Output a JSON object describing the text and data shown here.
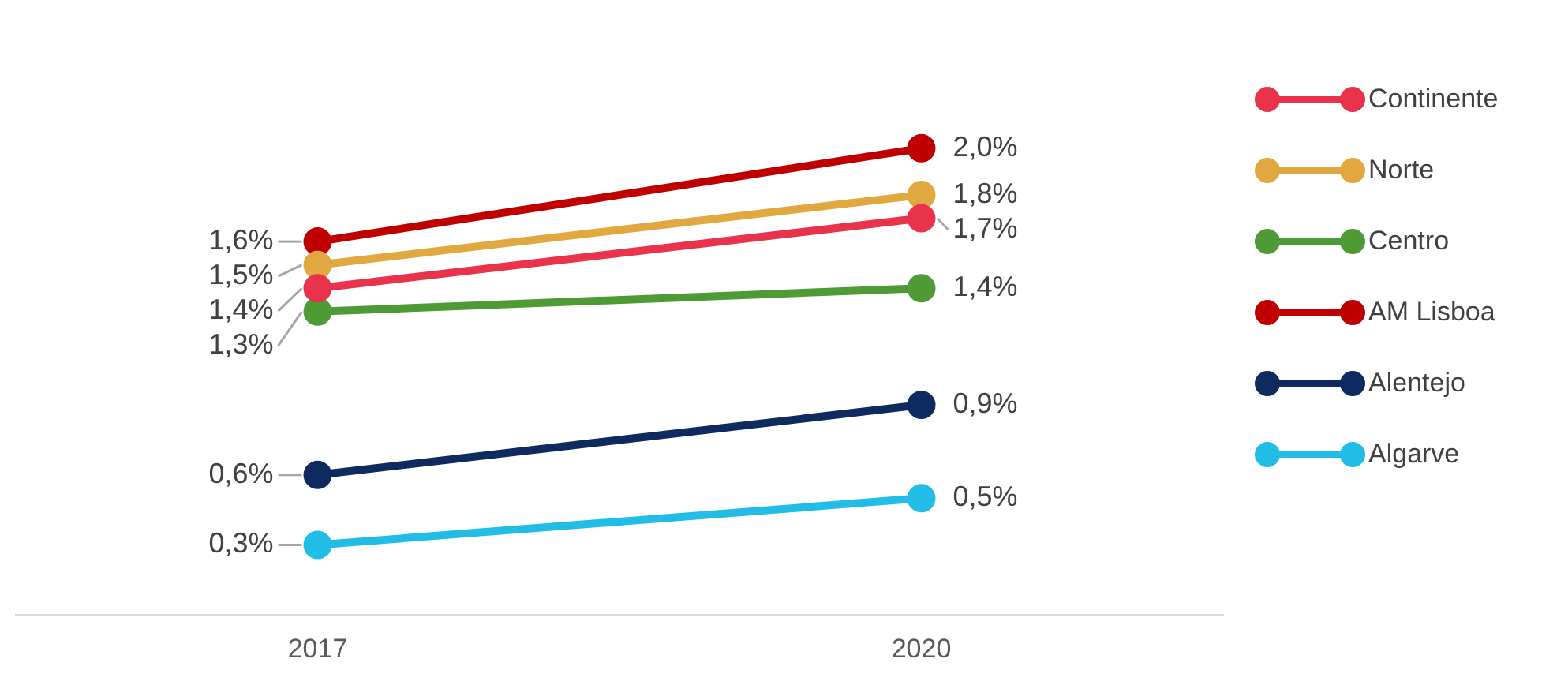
{
  "chart_data": {
    "type": "line",
    "categories": [
      "2017",
      "2020"
    ],
    "series": [
      {
        "name": "Continente",
        "color": "#e8334a",
        "values": [
          1.4,
          1.7
        ],
        "value_labels": [
          "1,4%",
          "1,7%"
        ]
      },
      {
        "name": "Norte",
        "color": "#e0a83e",
        "values": [
          1.5,
          1.8
        ],
        "value_labels": [
          "1,5%",
          "1,8%"
        ]
      },
      {
        "name": "Centro",
        "color": "#4e9a35",
        "values": [
          1.3,
          1.4
        ],
        "value_labels": [
          "1,3%",
          "1,4%"
        ]
      },
      {
        "name": "AM Lisboa",
        "color": "#c00000",
        "values": [
          1.6,
          2.0
        ],
        "value_labels": [
          "1,6%",
          "2,0%"
        ]
      },
      {
        "name": "Alentejo",
        "color": "#0e2a5e",
        "values": [
          0.6,
          0.9
        ],
        "value_labels": [
          "0,6%",
          "0,9%"
        ]
      },
      {
        "name": "Algarve",
        "color": "#22bde6",
        "values": [
          0.3,
          0.5
        ],
        "value_labels": [
          "0,3%",
          "0,5%"
        ]
      }
    ],
    "marker": "circle",
    "line_style": "solid",
    "legend": "right",
    "grid": false,
    "tick_labels": "x"
  }
}
